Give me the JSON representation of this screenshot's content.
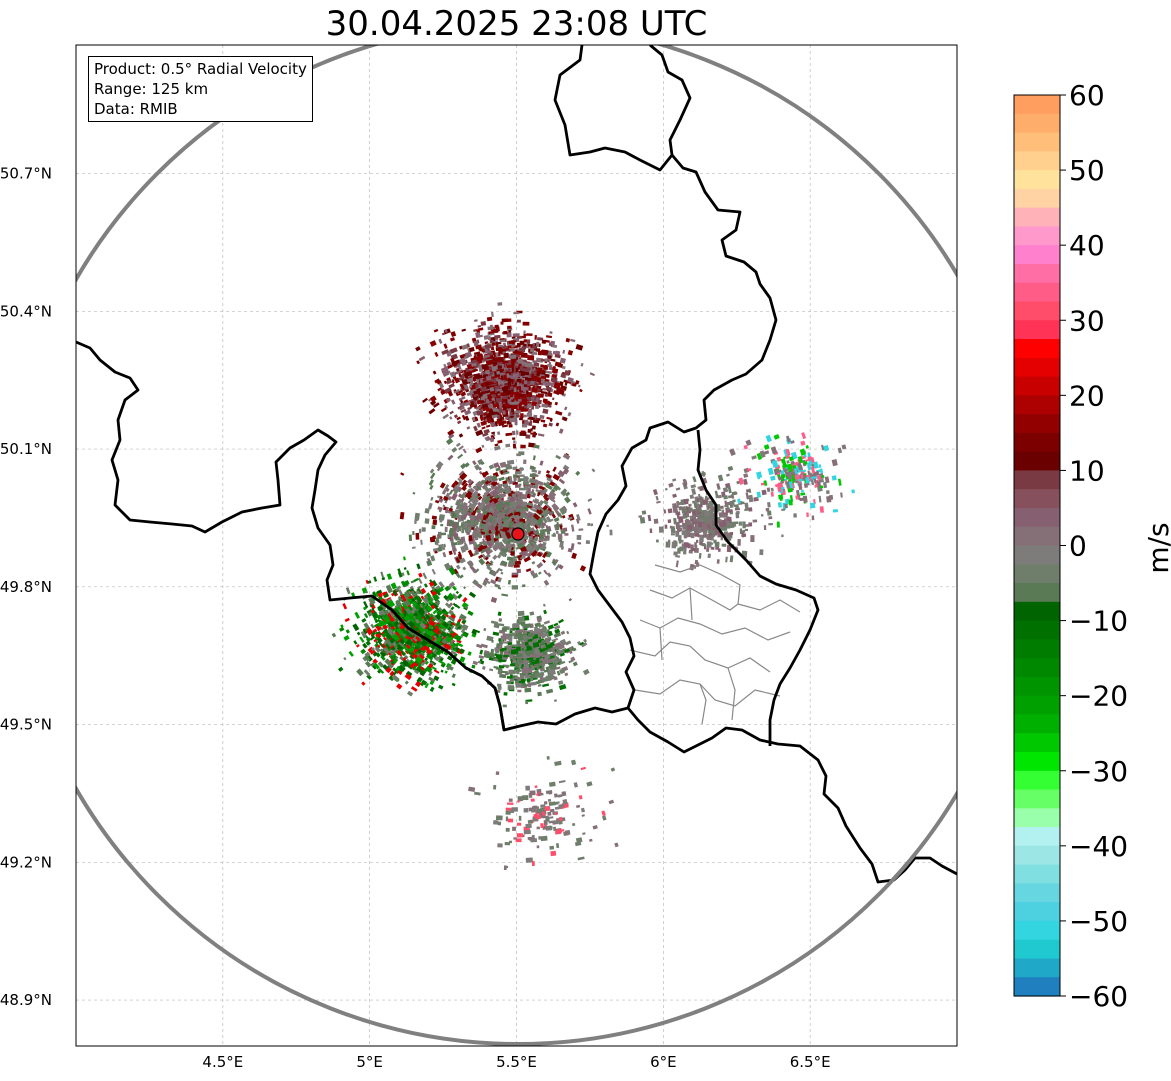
{
  "title": "30.04.2025 23:08 UTC",
  "info": {
    "product": "Product: 0.5° Radial Velocity",
    "range": "Range: 125 km",
    "data": "Data: RMIB"
  },
  "map": {
    "lon_range": [
      4.0,
      7.0
    ],
    "lat_range": [
      48.8,
      50.98
    ],
    "lat_ticks": [
      {
        "value": 50.7,
        "label": "50.7°N"
      },
      {
        "value": 50.4,
        "label": "50.4°N"
      },
      {
        "value": 50.1,
        "label": "50.1°N"
      },
      {
        "value": 49.8,
        "label": "49.8°N"
      },
      {
        "value": 49.5,
        "label": "49.5°N"
      },
      {
        "value": 49.2,
        "label": "49.2°N"
      },
      {
        "value": 48.9,
        "label": "48.9°N"
      }
    ],
    "lon_ticks": [
      {
        "value": 4.5,
        "label": "4.5°E"
      },
      {
        "value": 5.0,
        "label": "5°E"
      },
      {
        "value": 5.5,
        "label": "5.5°E"
      },
      {
        "value": 6.0,
        "label": "6°E"
      },
      {
        "value": 6.5,
        "label": "6.5°E"
      }
    ],
    "radar_site": {
      "lon": 5.505,
      "lat": 49.915
    },
    "range_km": 125
  },
  "colorbar": {
    "label": "m/s",
    "vmin": -60,
    "vmax": 60,
    "ticks": [
      {
        "value": 60,
        "label": "60"
      },
      {
        "value": 50,
        "label": "50"
      },
      {
        "value": 40,
        "label": "40"
      },
      {
        "value": 30,
        "label": "30"
      },
      {
        "value": 20,
        "label": "20"
      },
      {
        "value": 10,
        "label": "10"
      },
      {
        "value": 0,
        "label": "0"
      },
      {
        "value": -10,
        "label": "−10"
      },
      {
        "value": -20,
        "label": "−20"
      },
      {
        "value": -30,
        "label": "−30"
      },
      {
        "value": -40,
        "label": "−40"
      },
      {
        "value": -50,
        "label": "−50"
      },
      {
        "value": -60,
        "label": "−60"
      }
    ],
    "colors_top_to_bottom": [
      "#ff9e5e",
      "#ffad6a",
      "#ffbf7a",
      "#ffd08e",
      "#ffe39c",
      "#ffd3a3",
      "#ffb3b8",
      "#ff99cc",
      "#ff80cc",
      "#ff6fa6",
      "#ff5c88",
      "#ff4d6a",
      "#ff3355",
      "#ff0000",
      "#e40000",
      "#c80000",
      "#ad0000",
      "#930000",
      "#7d0000",
      "#6a0000",
      "#7a3a44",
      "#86505c",
      "#866070",
      "#867078",
      "#7e7c7a",
      "#6e7e6a",
      "#5a7a56",
      "#006400",
      "#007000",
      "#007d00",
      "#008800",
      "#009400",
      "#00a000",
      "#00b000",
      "#00c800",
      "#00e600",
      "#33ff33",
      "#66ff66",
      "#99ffaa",
      "#b3f0f0",
      "#9ce6e6",
      "#80dfe0",
      "#66d6e0",
      "#4dd0e0",
      "#33d6e0",
      "#20c8d0",
      "#20a8c8",
      "#1f7fbf"
    ]
  },
  "regions": [
    {
      "name": "northern-radial-velocity-region",
      "lon": 5.45,
      "lat": 50.25,
      "r": 0.35,
      "colors": [
        "#800000",
        "#8b0000",
        "#6a0000",
        "#7a3a44",
        "#866070",
        "#867078"
      ],
      "count": 1900
    },
    {
      "name": "center-radial-velocity-region",
      "lon": 5.45,
      "lat": 49.95,
      "r": 0.42,
      "colors": [
        "#867078",
        "#7e7c7a",
        "#6e7e6a",
        "#866070",
        "#5a7a56",
        "#800000"
      ],
      "count": 1700
    },
    {
      "name": "southwest-radial-velocity-region",
      "lon": 5.15,
      "lat": 49.7,
      "r": 0.33,
      "colors": [
        "#007000",
        "#008800",
        "#006400",
        "#00a000",
        "#5a7a56",
        "#6e7e6a",
        "#e40000"
      ],
      "count": 1500
    },
    {
      "name": "southeast-radial-velocity-region",
      "lon": 5.55,
      "lat": 49.65,
      "r": 0.25,
      "colors": [
        "#6e7e6a",
        "#5a7a56",
        "#7e7c7a",
        "#007000",
        "#867078"
      ],
      "count": 800
    },
    {
      "name": "east-radial-velocity-region",
      "lon": 6.15,
      "lat": 49.95,
      "r": 0.3,
      "colors": [
        "#7e7c7a",
        "#867078",
        "#866070",
        "#6e7e6a"
      ],
      "count": 500
    },
    {
      "name": "far-east-radial-velocity-region",
      "lon": 6.45,
      "lat": 50.05,
      "r": 0.28,
      "colors": [
        "#7e7c7a",
        "#867078",
        "#ff5c88",
        "#00c800",
        "#33d6e0"
      ],
      "count": 260
    },
    {
      "name": "south-radial-velocity-region",
      "lon": 5.6,
      "lat": 49.3,
      "r": 0.35,
      "colors": [
        "#7e7c7a",
        "#6e7e6a",
        "#867078",
        "#ff4d6a"
      ],
      "count": 160
    }
  ]
}
